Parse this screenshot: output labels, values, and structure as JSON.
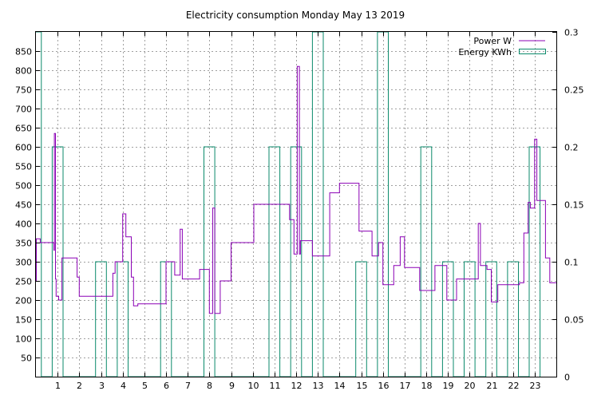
{
  "chart_data": {
    "type": "line",
    "title": "Electricity consumption Monday May 13 2019",
    "xlabel": "",
    "ylabel": "",
    "xlim": [
      0,
      24
    ],
    "ylim": [
      0,
      900
    ],
    "y2lim": [
      0,
      0.3
    ],
    "grid": true,
    "legend": "top-right",
    "x_ticks": [
      1,
      2,
      3,
      4,
      5,
      6,
      7,
      8,
      9,
      10,
      11,
      12,
      13,
      14,
      15,
      16,
      17,
      18,
      19,
      20,
      21,
      22,
      23
    ],
    "y_ticks": [
      50,
      100,
      150,
      200,
      250,
      300,
      350,
      400,
      450,
      500,
      550,
      600,
      650,
      700,
      750,
      800,
      850
    ],
    "y2_ticks": [
      "0",
      "0.05",
      "0.1",
      "0.15",
      "0.2",
      "0.25",
      "0.3"
    ],
    "y2_tick_values": [
      0,
      0.05,
      0.1,
      0.15,
      0.2,
      0.25,
      0.3
    ],
    "series": [
      {
        "name": "Power W",
        "axis": "y1",
        "style": "step",
        "color": "#8b00b5",
        "x": [
          0,
          0.02,
          0.2,
          0.75,
          0.83,
          0.85,
          0.9,
          0.93,
          1.05,
          1.2,
          1.35,
          1.9,
          2.0,
          3.0,
          3.3,
          3.55,
          3.65,
          4.0,
          4.05,
          4.15,
          4.4,
          4.5,
          4.7,
          5.0,
          5.45,
          5.9,
          6.0,
          6.4,
          6.65,
          6.75,
          7.0,
          7.5,
          7.55,
          8.0,
          8.1,
          8.15,
          8.25,
          8.5,
          8.85,
          9.0,
          9.5,
          10.0,
          10.05,
          10.5,
          11.3,
          11.7,
          11.9,
          12.0,
          12.05,
          12.15,
          12.2,
          12.4,
          12.6,
          12.75,
          13.0,
          13.5,
          13.55,
          13.8,
          14.0,
          14.4,
          14.9,
          15.0,
          15.3,
          15.5,
          15.8,
          16.0,
          16.05,
          16.5,
          16.8,
          17.0,
          17.5,
          17.7,
          18.3,
          18.4,
          18.8,
          18.95,
          19.0,
          19.4,
          19.6,
          19.8,
          20.0,
          20.4,
          20.5,
          20.8,
          21.0,
          21.2,
          21.3,
          21.5,
          22.0,
          22.3,
          22.5,
          22.7,
          22.8,
          22.9,
          23.0,
          23.1,
          23.3,
          23.5,
          23.7,
          24.0
        ],
        "y": [
          250,
          360,
          350,
          350,
          330,
          635,
          255,
          210,
          200,
          310,
          310,
          260,
          210,
          210,
          210,
          270,
          300,
          425,
          425,
          365,
          260,
          185,
          190,
          190,
          190,
          190,
          300,
          265,
          385,
          255,
          255,
          255,
          280,
          165,
          165,
          440,
          165,
          250,
          250,
          350,
          350,
          350,
          450,
          450,
          450,
          410,
          320,
          320,
          810,
          320,
          355,
          355,
          355,
          315,
          315,
          315,
          480,
          480,
          505,
          505,
          380,
          380,
          380,
          315,
          350,
          240,
          240,
          290,
          365,
          285,
          285,
          225,
          225,
          290,
          290,
          200,
          200,
          255,
          255,
          255,
          255,
          400,
          290,
          280,
          195,
          195,
          240,
          240,
          240,
          245,
          375,
          455,
          440,
          440,
          620,
          460,
          460,
          310,
          245,
          245
        ]
      },
      {
        "name": "Energy KWh",
        "axis": "y2",
        "style": "histeps",
        "color": "#0b8a6b",
        "x": [
          0,
          1,
          2,
          3,
          4,
          5,
          6,
          7,
          8,
          9,
          10,
          11,
          12,
          13,
          14,
          15,
          16,
          17,
          18,
          19,
          20,
          21,
          22,
          23
        ],
        "y": [
          0.3,
          0.2,
          0.0,
          0.1,
          0.1,
          0.0,
          0.1,
          0.0,
          0.2,
          0.0,
          0.0,
          0.2,
          0.2,
          0.3,
          0.0,
          0.1,
          0.3,
          0.0,
          0.2,
          0.1,
          0.1,
          0.1,
          0.1,
          0.2
        ]
      }
    ]
  }
}
